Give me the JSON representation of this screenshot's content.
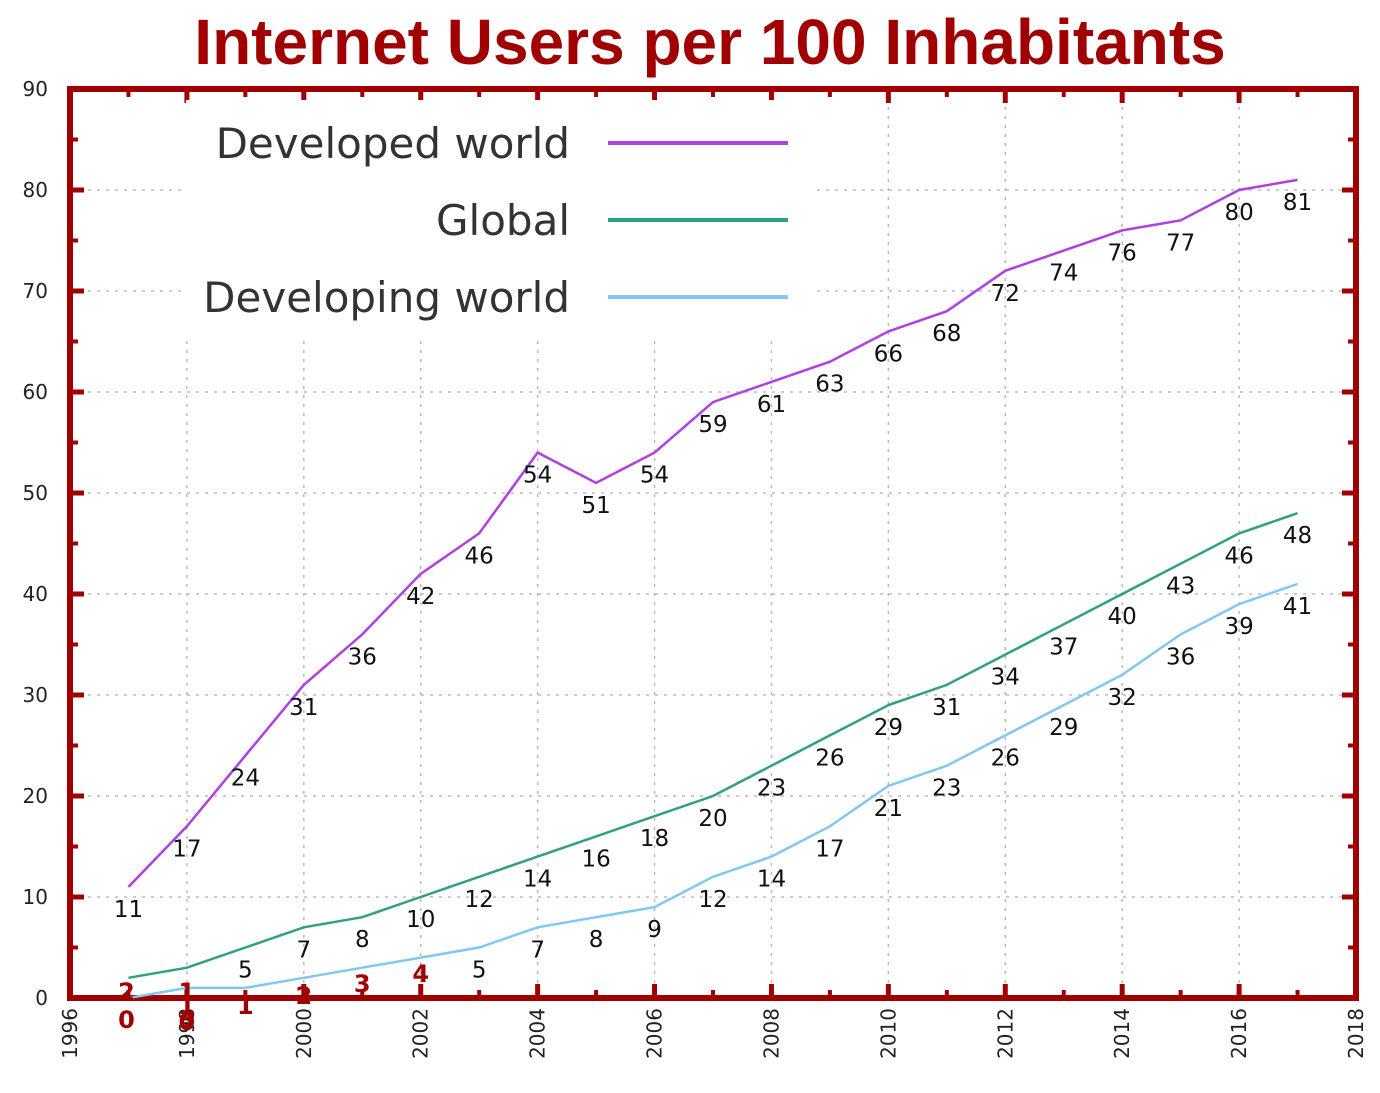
{
  "chart_data": {
    "type": "line",
    "title": "Internet Users per 100 Inhabitants",
    "x": [
      1997,
      1998,
      1999,
      2000,
      2001,
      2002,
      2003,
      2004,
      2005,
      2006,
      2007,
      2008,
      2009,
      2010,
      2011,
      2012,
      2013,
      2014,
      2015,
      2016,
      2017
    ],
    "series": [
      {
        "name": "Developed world",
        "color": "#b040e0",
        "values": [
          11,
          17,
          24,
          31,
          36,
          42,
          46,
          54,
          51,
          54,
          59,
          61,
          63,
          66,
          68,
          72,
          74,
          76,
          77,
          80,
          81
        ],
        "labels": [
          "11",
          "17",
          "24",
          "31",
          "36",
          "42",
          "46",
          "54",
          "51",
          "54",
          "59",
          "61",
          "63",
          "66",
          "68",
          "72",
          "74",
          "76",
          "77",
          "80",
          "81"
        ]
      },
      {
        "name": "Global",
        "color": "#30a080",
        "values": [
          2,
          3,
          5,
          7,
          8,
          10,
          12,
          14,
          16,
          18,
          20,
          23,
          26,
          29,
          31,
          34,
          37,
          40,
          43,
          46,
          48
        ],
        "labels": [
          "",
          "",
          "5",
          "7",
          "8",
          "10",
          "12",
          "14",
          "16",
          "18",
          "20",
          "23",
          "26",
          "29",
          "31",
          "34",
          "37",
          "40",
          "43",
          "46",
          "48"
        ]
      },
      {
        "name": "Developing world",
        "color": "#80c8f0",
        "values": [
          0,
          1,
          1,
          2,
          3,
          4,
          5,
          7,
          8,
          9,
          12,
          14,
          17,
          21,
          23,
          26,
          29,
          32,
          36,
          39,
          41
        ],
        "labels": [
          "",
          "",
          "",
          "",
          "",
          "",
          "5",
          "7",
          "8",
          "9",
          "12",
          "14",
          "17",
          "21",
          "23",
          "26",
          "29",
          "32",
          "36",
          "39",
          "41"
        ]
      }
    ],
    "overprint_labels": [
      {
        "x": 1997,
        "text": "2"
      },
      {
        "x": 1997,
        "text": "0"
      },
      {
        "x": 1998,
        "text": "1"
      },
      {
        "x": 1998,
        "text": "1"
      },
      {
        "x": 1998,
        "text": "3"
      },
      {
        "x": 1998,
        "text": "0"
      },
      {
        "x": 1999,
        "text": "1"
      },
      {
        "x": 2000,
        "text": "2"
      },
      {
        "x": 2001,
        "text": "3"
      },
      {
        "x": 2002,
        "text": "4"
      }
    ],
    "xticks": [
      "1996",
      "1998",
      "2000",
      "2002",
      "2004",
      "2006",
      "2008",
      "2010",
      "2012",
      "2014",
      "2016",
      "2018"
    ],
    "yticks": [
      "0",
      "10",
      "20",
      "30",
      "40",
      "50",
      "60",
      "70",
      "80",
      "90"
    ],
    "xlim": [
      1996,
      2018
    ],
    "ylim": [
      0,
      90
    ],
    "xlabel": "",
    "ylabel": "",
    "grid": true,
    "legend_position": "top-left"
  },
  "colors": {
    "title": "#a00000",
    "frame": "#a00000",
    "overprint": "#a00000"
  }
}
